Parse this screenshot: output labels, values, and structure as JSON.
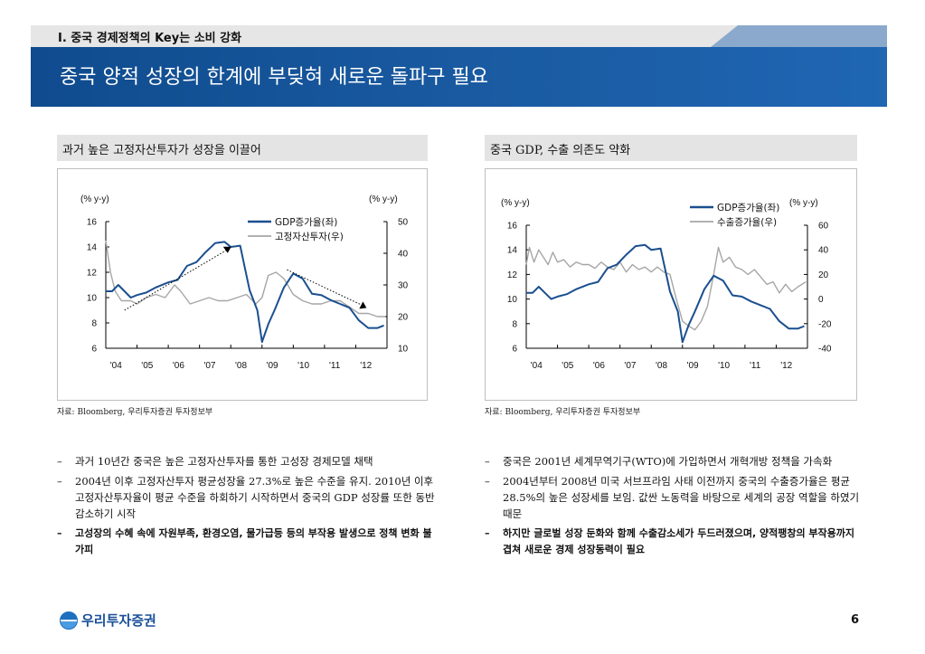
{
  "header": {
    "section_title": "I. 중국 경제정책의 Key는 소비 강화",
    "headline": "중국 양적 성장의 한계에 부딪혀 새로운 돌파구 필요"
  },
  "colors": {
    "banner": "#1a5ba2",
    "series_primary": "#1a4f8f",
    "series_secondary": "#a6a6a6"
  },
  "left_panel": {
    "heading": "과거 높은 고정자산투자가 성장을 이끌어",
    "source": "자료: Bloomberg, 우리투자증권 투자정보부",
    "chart_data": {
      "type": "line",
      "ylabel_left": "(% y-y)",
      "ylabel_right": "(% y-y)",
      "x_ticks": [
        "'04",
        "'05",
        "'06",
        "'07",
        "'08",
        "'09",
        "'10",
        "'11",
        "'12"
      ],
      "ylim_left": [
        6,
        16
      ],
      "yticks_left": [
        "16",
        "14",
        "12",
        "10",
        "8",
        "6"
      ],
      "ylim_right": [
        10,
        50
      ],
      "yticks_right": [
        "50",
        "40",
        "30",
        "20",
        "10"
      ],
      "legend": [
        "GDP증가율(좌)",
        "고정자산투자(우)"
      ],
      "series": [
        {
          "name": "GDP증가율(좌)",
          "axis": "left",
          "x": [
            2004.0,
            2004.2,
            2004.4,
            2004.6,
            2004.8,
            2005.0,
            2005.3,
            2005.6,
            2006.0,
            2006.3,
            2006.6,
            2006.9,
            2007.2,
            2007.5,
            2007.8,
            2008.0,
            2008.3,
            2008.6,
            2008.85,
            2009.0,
            2009.2,
            2009.4,
            2009.7,
            2010.0,
            2010.3,
            2010.6,
            2010.9,
            2011.2,
            2011.5,
            2011.8,
            2012.1,
            2012.4,
            2012.7,
            2012.9
          ],
          "values": [
            10.5,
            10.5,
            11.0,
            10.5,
            10.0,
            10.2,
            10.4,
            10.8,
            11.2,
            11.4,
            12.5,
            12.8,
            13.6,
            14.3,
            14.4,
            14.0,
            14.1,
            10.6,
            9.0,
            6.5,
            7.9,
            9.0,
            10.8,
            11.9,
            11.5,
            10.3,
            10.2,
            9.8,
            9.5,
            9.2,
            8.2,
            7.6,
            7.6,
            7.8
          ]
        },
        {
          "name": "고정자산투자(우)",
          "axis": "right",
          "x": [
            2004.0,
            2004.15,
            2004.3,
            2004.5,
            2004.8,
            2005.0,
            2005.3,
            2005.6,
            2005.9,
            2006.2,
            2006.4,
            2006.7,
            2007.0,
            2007.3,
            2007.6,
            2007.9,
            2008.2,
            2008.5,
            2008.8,
            2009.0,
            2009.2,
            2009.45,
            2009.7,
            2010.0,
            2010.3,
            2010.6,
            2010.9,
            2011.2,
            2011.5,
            2011.8,
            2012.1,
            2012.4,
            2012.7,
            2012.95
          ],
          "values": [
            44,
            34,
            28,
            25,
            25,
            24,
            26,
            27,
            26,
            30,
            28,
            24,
            25,
            26,
            25,
            25,
            26,
            27,
            24,
            26,
            33,
            34,
            32,
            27,
            25,
            24,
            24,
            25,
            25,
            23,
            21,
            21,
            20,
            20
          ]
        }
      ],
      "annotations": [
        "uptrend-dotted-arrow",
        "downtrend-dotted-arrow"
      ]
    }
  },
  "right_panel": {
    "heading": "중국 GDP, 수출 의존도 약화",
    "source": "자료: Bloomberg, 우리투자증권 투자정보부",
    "chart_data": {
      "type": "line",
      "ylabel_left": "(% y-y)",
      "ylabel_right": "(% y-y)",
      "x_ticks": [
        "'04",
        "'05",
        "'06",
        "'07",
        "'08",
        "'09",
        "'10",
        "'11",
        "'12"
      ],
      "ylim_left": [
        6,
        16
      ],
      "yticks_left": [
        "16",
        "14",
        "12",
        "10",
        "8",
        "6"
      ],
      "ylim_right": [
        -40,
        60
      ],
      "yticks_right": [
        "60",
        "40",
        "20",
        "0",
        "-20",
        "-40"
      ],
      "legend": [
        "GDP증가율(좌)",
        "수출증가율(우)"
      ],
      "series": [
        {
          "name": "GDP증가율(좌)",
          "axis": "left",
          "x": [
            2004.0,
            2004.2,
            2004.4,
            2004.6,
            2004.8,
            2005.0,
            2005.3,
            2005.6,
            2006.0,
            2006.3,
            2006.6,
            2006.9,
            2007.2,
            2007.5,
            2007.8,
            2008.0,
            2008.3,
            2008.6,
            2008.85,
            2009.0,
            2009.2,
            2009.4,
            2009.7,
            2010.0,
            2010.3,
            2010.6,
            2010.9,
            2011.2,
            2011.5,
            2011.8,
            2012.1,
            2012.4,
            2012.7,
            2012.9
          ],
          "values": [
            10.5,
            10.5,
            11.0,
            10.5,
            10.0,
            10.2,
            10.4,
            10.8,
            11.2,
            11.4,
            12.5,
            12.8,
            13.6,
            14.3,
            14.4,
            14.0,
            14.1,
            10.6,
            9.0,
            6.5,
            7.9,
            9.0,
            10.8,
            11.9,
            11.5,
            10.3,
            10.2,
            9.8,
            9.5,
            9.2,
            8.2,
            7.6,
            7.6,
            7.8
          ]
        },
        {
          "name": "수출증가율(우)",
          "axis": "right",
          "x": [
            2004.0,
            2004.1,
            2004.25,
            2004.4,
            2004.55,
            2004.7,
            2004.85,
            2005.0,
            2005.2,
            2005.4,
            2005.6,
            2005.8,
            2006.0,
            2006.2,
            2006.4,
            2006.6,
            2006.8,
            2007.0,
            2007.2,
            2007.4,
            2007.6,
            2007.8,
            2008.0,
            2008.2,
            2008.4,
            2008.6,
            2008.8,
            2009.0,
            2009.2,
            2009.4,
            2009.6,
            2009.8,
            2010.0,
            2010.15,
            2010.3,
            2010.5,
            2010.7,
            2010.9,
            2011.1,
            2011.3,
            2011.5,
            2011.7,
            2011.9,
            2012.1,
            2012.3,
            2012.5,
            2012.7,
            2012.95
          ],
          "values": [
            28,
            42,
            30,
            40,
            34,
            28,
            38,
            30,
            32,
            26,
            30,
            28,
            28,
            25,
            30,
            26,
            24,
            30,
            22,
            28,
            24,
            26,
            22,
            26,
            22,
            20,
            0,
            -18,
            -22,
            -25,
            -18,
            -6,
            20,
            42,
            30,
            34,
            26,
            24,
            20,
            24,
            18,
            12,
            14,
            5,
            12,
            6,
            10,
            14
          ]
        }
      ]
    }
  },
  "left_bullets": [
    "과거 10년간 중국은 높은 고정자산투자를 통한 고성장 경제모델 채택",
    "2004년 이후 고정자산투자 평균성장율 27.3%로 높은 수준을 유지. 2010년 이후 고정자산투자율이 평균 수준을 하회하기 시작하면서 중국의 GDP 성장률 또한 동반 감소하기 시작",
    "고성장의 수혜 속에 자원부족, 환경오염, 물가급등 등의 부작용 발생으로 정책 변화 불가피"
  ],
  "right_bullets": [
    "중국은 2001년 세계무역기구(WTO)에 가입하면서 개혁개방 정책을 가속화",
    "2004년부터 2008년 미국 서브프라임 사태 이전까지 중국의 수출증가율은 평균 28.5%의 높은 성장세를 보임. 값싼 노동력을 바탕으로 세계의 공장 역할을 하였기 때문",
    "하지만 글로벌 성장 둔화와 함께 수출감소세가 두드러졌으며, 양적팽창의 부작용까지 겹쳐 새로운 경제 성장동력이 필요"
  ],
  "footer": {
    "brand": "우리투자증권",
    "page_number": "6"
  }
}
